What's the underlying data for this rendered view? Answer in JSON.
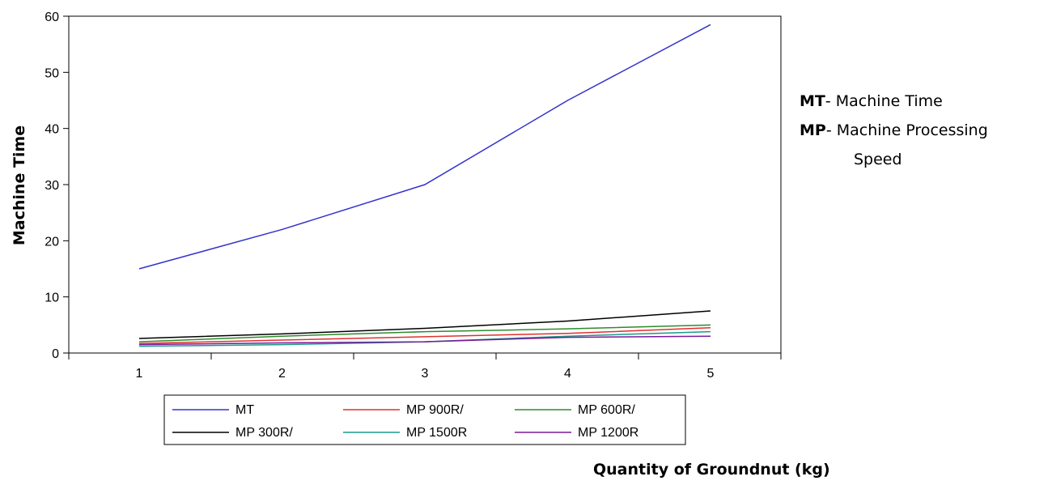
{
  "chart_data": {
    "type": "line",
    "x": [
      1,
      2,
      3,
      4,
      5
    ],
    "xlabel": "Quantity of Groundnut (kg)",
    "ylabel": "Machine Time",
    "ylim": [
      0,
      60
    ],
    "yticks": [
      0,
      10,
      20,
      30,
      40,
      50,
      60
    ],
    "xticks": [
      1,
      2,
      3,
      4,
      5
    ],
    "grid": false,
    "legend_position": "bottom",
    "series": [
      {
        "name": "MT",
        "color": "#3333cc",
        "values": [
          15,
          22,
          30,
          45,
          58.5
        ]
      },
      {
        "name": "MP 900R/",
        "color": "#e03030",
        "values": [
          1.7,
          2.3,
          2.9,
          3.5,
          4.5
        ]
      },
      {
        "name": "MP 600R/",
        "color": "#2e8b2e",
        "values": [
          2.0,
          3.0,
          3.8,
          4.3,
          5.0
        ]
      },
      {
        "name": "MP 300R/",
        "color": "#000000",
        "values": [
          2.6,
          3.4,
          4.4,
          5.7,
          7.5
        ]
      },
      {
        "name": "MP 1500R",
        "color": "#1a9a8a",
        "values": [
          1.2,
          1.5,
          2.0,
          3.0,
          3.8
        ]
      },
      {
        "name": "MP 1200R",
        "color": "#7a1a9a",
        "values": [
          1.5,
          1.8,
          2.0,
          2.8,
          3.0
        ]
      }
    ]
  },
  "notes": {
    "mt_abbr": "MT",
    "mt_text": "- Machine Time",
    "mp_abbr": "MP",
    "mp_text": "- Machine Processing",
    "mp_text_cont": "Speed"
  }
}
